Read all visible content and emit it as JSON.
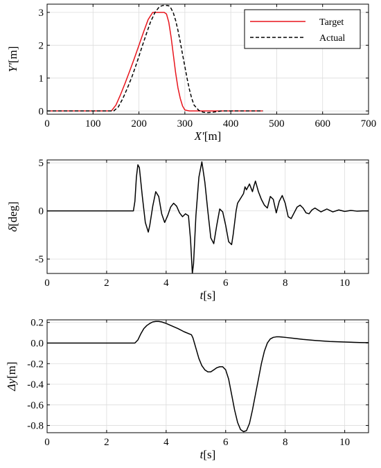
{
  "chart_data": [
    {
      "type": "line",
      "xlabel": "X′[m]",
      "ylabel": "Y′[m]",
      "xlim": [
        0,
        700
      ],
      "ylim": [
        -0.1,
        3.25
      ],
      "xticks": [
        0,
        100,
        200,
        300,
        400,
        500,
        600,
        700
      ],
      "yticks": [
        0,
        1,
        2,
        3
      ],
      "grid": true,
      "legend": "top-right",
      "series": [
        {
          "name": "Target",
          "color": "#e8141c",
          "style": "solid",
          "x": [
            0,
            140,
            150,
            160,
            170,
            180,
            190,
            200,
            210,
            220,
            230,
            235,
            245,
            255,
            260,
            265,
            270,
            275,
            280,
            285,
            290,
            295,
            300,
            310,
            320,
            400,
            470
          ],
          "y": [
            0,
            0,
            0.18,
            0.5,
            0.85,
            1.22,
            1.6,
            2.0,
            2.4,
            2.78,
            3.0,
            3.0,
            3.0,
            3.0,
            2.95,
            2.7,
            2.25,
            1.7,
            1.15,
            0.7,
            0.38,
            0.15,
            0.03,
            0,
            0,
            0,
            0
          ]
        },
        {
          "name": "Actual",
          "color": "#000000",
          "style": "dashed",
          "x": [
            0,
            145,
            155,
            165,
            175,
            185,
            195,
            205,
            215,
            225,
            235,
            245,
            255,
            265,
            270,
            275,
            280,
            285,
            290,
            295,
            300,
            305,
            310,
            315,
            320,
            330,
            340,
            350,
            360,
            370,
            380,
            400,
            470
          ],
          "y": [
            0,
            0,
            0.12,
            0.38,
            0.7,
            1.05,
            1.45,
            1.88,
            2.3,
            2.7,
            3.0,
            3.18,
            3.22,
            3.2,
            3.12,
            2.98,
            2.75,
            2.45,
            2.1,
            1.72,
            1.35,
            0.98,
            0.65,
            0.38,
            0.18,
            0.02,
            -0.04,
            -0.05,
            -0.04,
            -0.02,
            0,
            0,
            0
          ]
        }
      ]
    },
    {
      "type": "line",
      "xlabel": "t[s]",
      "ylabel": "δ[deg]",
      "xlim": [
        0,
        10.8
      ],
      "ylim": [
        -6.5,
        5.3
      ],
      "xticks": [
        0,
        2,
        4,
        6,
        8,
        10
      ],
      "yticks": [
        -5,
        0,
        5
      ],
      "grid": true,
      "series": [
        {
          "color": "#000000",
          "x": [
            0,
            2.9,
            2.95,
            3.0,
            3.05,
            3.1,
            3.2,
            3.3,
            3.4,
            3.45,
            3.55,
            3.65,
            3.75,
            3.85,
            3.95,
            4.05,
            4.15,
            4.25,
            4.35,
            4.45,
            4.55,
            4.65,
            4.75,
            4.82,
            4.88,
            4.92,
            4.96,
            5.0,
            5.05,
            5.1,
            5.2,
            5.3,
            5.4,
            5.5,
            5.6,
            5.7,
            5.8,
            5.9,
            6.0,
            6.1,
            6.2,
            6.25,
            6.35,
            6.4,
            6.5,
            6.6,
            6.65,
            6.7,
            6.8,
            6.85,
            6.9,
            6.95,
            7.0,
            7.1,
            7.15,
            7.2,
            7.3,
            7.4,
            7.5,
            7.6,
            7.7,
            7.8,
            7.9,
            8.0,
            8.1,
            8.2,
            8.3,
            8.4,
            8.5,
            8.6,
            8.7,
            8.8,
            8.9,
            9.0,
            9.2,
            9.4,
            9.6,
            9.8,
            10.0,
            10.2,
            10.4,
            10.6,
            10.8
          ],
          "y": [
            0,
            0,
            1.0,
            3.5,
            4.8,
            4.5,
            1.5,
            -1.2,
            -2.2,
            -1.5,
            0.5,
            2.0,
            1.5,
            -0.3,
            -1.2,
            -0.5,
            0.4,
            0.8,
            0.5,
            -0.2,
            -0.6,
            -0.3,
            -0.5,
            -3.0,
            -6.5,
            -5.5,
            -3.0,
            -0.5,
            1.5,
            3.5,
            5.1,
            3.0,
            0.0,
            -2.8,
            -3.4,
            -1.5,
            0.2,
            -0.1,
            -1.5,
            -3.2,
            -3.5,
            -2.5,
            0.0,
            0.8,
            1.3,
            1.8,
            2.5,
            2.2,
            2.8,
            2.4,
            2.0,
            2.6,
            3.1,
            2.0,
            1.6,
            1.2,
            0.6,
            0.3,
            1.5,
            1.2,
            -0.2,
            1.0,
            1.6,
            0.8,
            -0.6,
            -0.8,
            -0.2,
            0.4,
            0.6,
            0.3,
            -0.2,
            -0.3,
            0.1,
            0.3,
            -0.1,
            0.2,
            -0.1,
            0.1,
            -0.05,
            0.05,
            -0.02,
            0,
            0
          ]
        }
      ]
    },
    {
      "type": "line",
      "xlabel": "t[s]",
      "ylabel": "Δy[m]",
      "xlim": [
        0,
        10.8
      ],
      "ylim": [
        -0.87,
        0.225
      ],
      "xticks": [
        0,
        2,
        4,
        6,
        8,
        10
      ],
      "yticks": [
        0.2,
        0,
        -0.2,
        -0.4,
        -0.6,
        -0.8
      ],
      "grid": true,
      "series": [
        {
          "color": "#000000",
          "x": [
            0,
            2.95,
            3.05,
            3.15,
            3.25,
            3.35,
            3.45,
            3.55,
            3.65,
            3.75,
            3.85,
            4.0,
            4.2,
            4.4,
            4.6,
            4.85,
            4.9,
            5.0,
            5.1,
            5.2,
            5.3,
            5.4,
            5.5,
            5.6,
            5.7,
            5.8,
            5.9,
            6.0,
            6.1,
            6.2,
            6.3,
            6.4,
            6.5,
            6.6,
            6.7,
            6.8,
            6.9,
            7.0,
            7.1,
            7.2,
            7.3,
            7.4,
            7.5,
            7.6,
            7.7,
            7.8,
            7.9,
            8.0,
            8.3,
            8.6,
            9.0,
            9.5,
            10.0,
            10.5,
            10.8
          ],
          "y": [
            0,
            0,
            0.03,
            0.09,
            0.14,
            0.17,
            0.19,
            0.205,
            0.21,
            0.21,
            0.205,
            0.19,
            0.165,
            0.14,
            0.11,
            0.08,
            0.05,
            -0.05,
            -0.15,
            -0.22,
            -0.26,
            -0.28,
            -0.28,
            -0.26,
            -0.24,
            -0.23,
            -0.23,
            -0.26,
            -0.35,
            -0.5,
            -0.65,
            -0.77,
            -0.84,
            -0.86,
            -0.85,
            -0.78,
            -0.65,
            -0.5,
            -0.35,
            -0.2,
            -0.08,
            0.0,
            0.04,
            0.055,
            0.06,
            0.06,
            0.058,
            0.055,
            0.045,
            0.035,
            0.025,
            0.015,
            0.01,
            0.005,
            0.003
          ]
        }
      ]
    }
  ]
}
